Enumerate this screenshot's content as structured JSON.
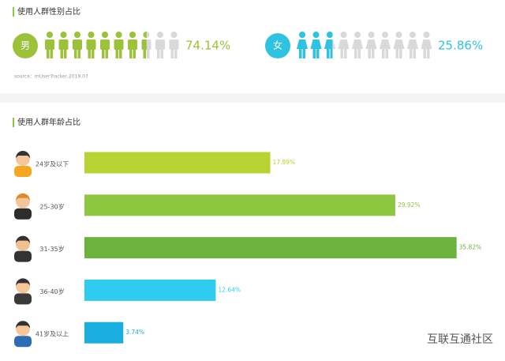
{
  "chart_data": [
    {
      "type": "pictograph",
      "title": "使用人群性别占比",
      "icon_count": 10,
      "xlim": [
        0,
        100
      ],
      "series": [
        {
          "name": "男",
          "color": "#9bc238",
          "values": [
            74.14
          ],
          "value_labels": [
            "74.14%"
          ]
        },
        {
          "name": "女",
          "color": "#2ec3e0",
          "values": [
            25.86
          ],
          "value_labels": [
            "25.86%"
          ]
        }
      ],
      "source": "source：mUserTracker,2019.07"
    },
    {
      "type": "bar",
      "orientation": "horizontal",
      "title": "使用人群年龄占比",
      "categories": [
        "24岁及以下",
        "25-30岁",
        "31-35岁",
        "36-40岁",
        "41岁及以上"
      ],
      "values": [
        17.89,
        29.92,
        35.82,
        12.64,
        3.74
      ],
      "value_labels": [
        "17.89%",
        "29.92%",
        "35.82%",
        "12.64%",
        "3.74%"
      ],
      "colors": [
        "#b7d433",
        "#8dc63f",
        "#6cb33e",
        "#2fcbf0",
        "#1aaee0"
      ],
      "xlim": [
        0,
        36
      ]
    }
  ],
  "watermark": "互联互通社区"
}
